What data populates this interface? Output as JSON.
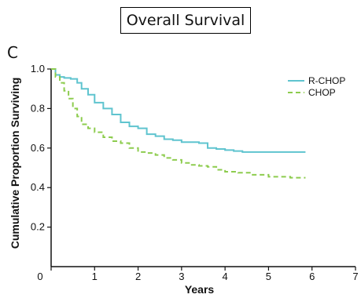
{
  "title": "Overall Survival",
  "panel_label": "C",
  "chart_data": {
    "type": "line",
    "xlabel": "Years",
    "ylabel": "Cumulative Proportion Surviving",
    "xlim": [
      0,
      7
    ],
    "ylim": [
      0,
      1.0
    ],
    "x_ticks": [
      "0",
      "1",
      "2",
      "3",
      "4",
      "5",
      "6",
      "7"
    ],
    "y_ticks": [
      "0.2",
      "0.4",
      "0.6",
      "0.8",
      "1.0"
    ],
    "grid": false,
    "legend_position": "top-right",
    "series": [
      {
        "name": "R-CHOP",
        "color": "#5fc4cf",
        "style": "solid",
        "x": [
          0,
          0.1,
          0.2,
          0.3,
          0.45,
          0.6,
          0.7,
          0.85,
          1.0,
          1.2,
          1.4,
          1.6,
          1.8,
          2.0,
          2.2,
          2.4,
          2.6,
          2.8,
          3.0,
          3.2,
          3.4,
          3.6,
          3.8,
          4.0,
          4.2,
          4.4,
          4.6,
          5.0,
          5.5,
          5.85
        ],
        "y": [
          1.0,
          0.97,
          0.96,
          0.955,
          0.95,
          0.93,
          0.9,
          0.87,
          0.83,
          0.8,
          0.77,
          0.73,
          0.71,
          0.7,
          0.67,
          0.66,
          0.645,
          0.64,
          0.63,
          0.63,
          0.625,
          0.6,
          0.595,
          0.59,
          0.585,
          0.58,
          0.58,
          0.58,
          0.58,
          0.58
        ]
      },
      {
        "name": "CHOP",
        "color": "#8dcc4e",
        "style": "dashed",
        "x": [
          0,
          0.1,
          0.2,
          0.3,
          0.4,
          0.5,
          0.6,
          0.7,
          0.85,
          1.0,
          1.2,
          1.4,
          1.6,
          1.8,
          2.0,
          2.2,
          2.4,
          2.6,
          2.8,
          3.0,
          3.2,
          3.4,
          3.6,
          3.8,
          4.0,
          4.3,
          4.6,
          5.0,
          5.5,
          5.85
        ],
        "y": [
          1.0,
          0.96,
          0.93,
          0.89,
          0.85,
          0.8,
          0.76,
          0.72,
          0.7,
          0.68,
          0.655,
          0.635,
          0.625,
          0.6,
          0.58,
          0.575,
          0.565,
          0.55,
          0.54,
          0.525,
          0.515,
          0.51,
          0.505,
          0.49,
          0.48,
          0.475,
          0.465,
          0.455,
          0.45,
          0.45
        ]
      }
    ]
  }
}
